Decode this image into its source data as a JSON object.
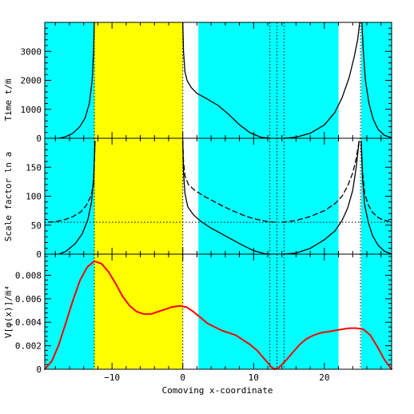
{
  "colors": {
    "cyan_region": "#00ffff",
    "yellow_region": "#ffff00",
    "potential_curve": "#ff0000",
    "curves": "#000000"
  },
  "chart_data": [
    {
      "type": "line",
      "panel": "top",
      "ylabel": "Time t/m̅",
      "ylim": [
        0,
        4000
      ],
      "yticks": [
        0,
        1000,
        2000,
        3000
      ],
      "xlim": [
        -19.5,
        29.5
      ],
      "grid": false,
      "series": [
        {
          "style": "solid",
          "x": [
            -12.5,
            -12.6,
            -12.8,
            -13.2,
            -13.8,
            -14.6,
            -15.6,
            -16.6,
            -17.5
          ],
          "y": [
            4000,
            3000,
            2000,
            1200,
            700,
            380,
            160,
            50,
            0
          ]
        },
        {
          "style": "solid",
          "x": [
            0.0,
            0.1,
            0.3,
            0.6,
            1.2,
            2.0,
            3.5,
            5.0,
            6.5,
            8.0,
            9.5,
            11.0,
            12.3
          ],
          "y": [
            4000,
            3000,
            2300,
            2000,
            1750,
            1550,
            1350,
            1130,
            820,
            470,
            190,
            40,
            0
          ]
        },
        {
          "style": "solid",
          "x": [
            14.2,
            16.0,
            18.0,
            20.0,
            21.5,
            22.5,
            23.5,
            24.2,
            24.7,
            25.0
          ],
          "y": [
            0,
            40,
            170,
            460,
            900,
            1400,
            2100,
            2800,
            3400,
            4000
          ]
        },
        {
          "style": "solid",
          "x": [
            25.3,
            25.5,
            25.8,
            26.3,
            26.9,
            27.6,
            28.5,
            29.5
          ],
          "y": [
            4000,
            3000,
            2000,
            1200,
            650,
            300,
            100,
            20
          ]
        }
      ]
    },
    {
      "type": "line",
      "panel": "middle",
      "ylabel": "Scale factor ln a",
      "ylim": [
        0,
        200
      ],
      "yticks": [
        0,
        50,
        100,
        150
      ],
      "xlim": [
        -19.5,
        29.5
      ],
      "grid": false,
      "reference_line_y": 55,
      "series": [
        {
          "style": "solid",
          "x": [
            -12.4,
            -12.6,
            -12.9,
            -13.4,
            -14.2,
            -15.2,
            -16.5,
            -17.5
          ],
          "y": [
            195,
            130,
            90,
            60,
            35,
            18,
            5,
            0
          ]
        },
        {
          "style": "dashed",
          "x": [
            -12.4,
            -12.6,
            -13.0,
            -13.6,
            -14.4,
            -15.5,
            -16.8,
            -18.0,
            -19.5
          ],
          "y": [
            195,
            120,
            100,
            85,
            73,
            65,
            59,
            56,
            55
          ]
        },
        {
          "style": "solid",
          "x": [
            0.0,
            0.1,
            0.3,
            0.7,
            1.5,
            2.5,
            4.0,
            5.5,
            7.0,
            8.5,
            10.0,
            11.5,
            12.3
          ],
          "y": [
            195,
            140,
            105,
            82,
            68,
            57,
            45,
            35,
            25,
            15,
            6,
            1,
            0
          ]
        },
        {
          "style": "dashed",
          "x": [
            0.0,
            0.1,
            0.3,
            0.8,
            1.7,
            3.0,
            5.0,
            7.0,
            9.0,
            10.5,
            12.0,
            13.0
          ],
          "y": [
            195,
            160,
            135,
            120,
            110,
            100,
            87,
            75,
            65,
            60,
            56,
            55
          ]
        },
        {
          "style": "solid",
          "x": [
            14.2,
            16.0,
            18.0,
            20.0,
            21.5,
            22.5,
            23.3,
            24.0,
            24.5,
            24.9
          ],
          "y": [
            0,
            2,
            10,
            25,
            40,
            58,
            80,
            110,
            150,
            195
          ]
        },
        {
          "style": "dashed",
          "x": [
            14.0,
            16.0,
            18.0,
            20.0,
            21.5,
            22.5,
            23.3,
            24.0,
            24.5,
            24.9
          ],
          "y": [
            55,
            58,
            65,
            75,
            87,
            100,
            118,
            140,
            165,
            195
          ]
        },
        {
          "style": "solid",
          "x": [
            25.2,
            25.4,
            25.7,
            26.2,
            26.8,
            27.6,
            28.5,
            29.5
          ],
          "y": [
            195,
            130,
            85,
            55,
            32,
            15,
            5,
            0
          ]
        },
        {
          "style": "dashed",
          "x": [
            25.2,
            25.4,
            25.7,
            26.2,
            26.8,
            27.6,
            28.5,
            29.5
          ],
          "y": [
            195,
            140,
            105,
            85,
            72,
            63,
            58,
            56
          ]
        }
      ]
    },
    {
      "type": "line",
      "panel": "bottom",
      "ylabel": "V[φ(x)]/m̅⁴",
      "xlabel": "Comoving x-coordinate",
      "ylim": [
        0,
        0.0098
      ],
      "yticks": [
        0,
        0.002,
        0.004,
        0.006,
        0.008
      ],
      "ytick_labels": [
        "0",
        "0.002",
        "0.004",
        "0.006",
        "0.008"
      ],
      "xlim": [
        -19.5,
        29.5
      ],
      "xticks": [
        -10,
        0,
        10,
        20
      ],
      "grid": false,
      "series": [
        {
          "style": "solid",
          "color_key": "potential_curve",
          "x": [
            -19.5,
            -18.5,
            -17.5,
            -16.5,
            -15.5,
            -14.5,
            -13.5,
            -12.5,
            -11.5,
            -10.5,
            -9.5,
            -8.5,
            -7.5,
            -6.5,
            -5.5,
            -4.5,
            -3.5,
            -2.5,
            -1.5,
            -0.5,
            0.5,
            1.5,
            2.5,
            3.5,
            4.5,
            5.5,
            6.5,
            7.5,
            8.5,
            9.5,
            10.5,
            11.5,
            12.5,
            13.0,
            13.5,
            14.5,
            15.5,
            16.5,
            17.5,
            18.5,
            19.5,
            20.5,
            21.5,
            22.5,
            23.5,
            24.5,
            25.5,
            26.5,
            27.5,
            28.5,
            29.5
          ],
          "y": [
            0.0,
            0.0007,
            0.0021,
            0.004,
            0.0059,
            0.0076,
            0.0087,
            0.0092,
            0.009,
            0.0083,
            0.0073,
            0.0062,
            0.0054,
            0.0049,
            0.0047,
            0.0047,
            0.0049,
            0.0051,
            0.0053,
            0.0054,
            0.0053,
            0.0049,
            0.0044,
            0.0039,
            0.0036,
            0.0033,
            0.0031,
            0.0029,
            0.0025,
            0.0021,
            0.0016,
            0.0009,
            0.0002,
            0.0,
            0.0001,
            0.0007,
            0.0014,
            0.0021,
            0.0026,
            0.0029,
            0.0031,
            0.0032,
            0.0033,
            0.0034,
            0.0035,
            0.0035,
            0.0034,
            0.0029,
            0.0019,
            0.0008,
            0.0
          ]
        }
      ]
    }
  ],
  "shared_x": {
    "xlim": [
      -19.5,
      29.5
    ],
    "xticks": [
      -10,
      0,
      10,
      20
    ],
    "xtick_labels": [
      "−10",
      "0",
      "10",
      "20"
    ],
    "xlabel": "Comoving x-coordinate",
    "shaded_regions": [
      {
        "from": -19.5,
        "to": -12.5,
        "color_key": "cyan_region"
      },
      {
        "from": -12.5,
        "to": 0.0,
        "color_key": "yellow_region"
      },
      {
        "from": 2.2,
        "to": 22.0,
        "color_key": "cyan_region"
      },
      {
        "from": 25.2,
        "to": 29.5,
        "color_key": "cyan_region"
      }
    ],
    "dotted_verticals": [
      -12.5,
      0.0,
      12.3,
      13.3,
      14.3,
      25.1
    ]
  }
}
